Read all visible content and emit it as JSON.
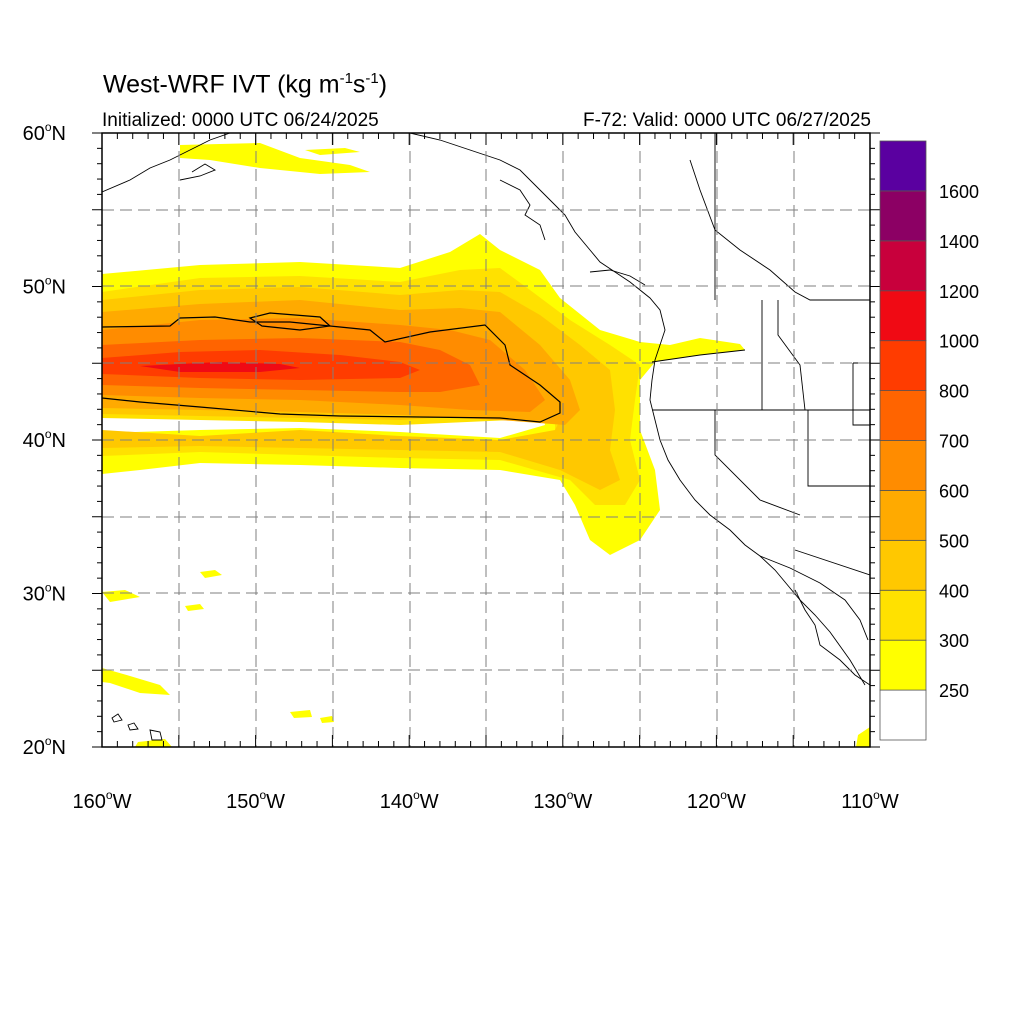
{
  "title": {
    "main": "West-WRF IVT (kg m",
    "sup1": "-1",
    "mid": "s",
    "sup2": "-1",
    "end": ")"
  },
  "init_label": "Initialized: 0000 UTC 06/24/2025",
  "valid_label": "F-72: Valid: 0000 UTC 06/27/2025",
  "map": {
    "lon_range": [
      -160,
      -110
    ],
    "lat_range": [
      20,
      60
    ],
    "lon_ticks": [
      -160,
      -150,
      -140,
      -130,
      -120,
      -110
    ],
    "lat_ticks": [
      60,
      50,
      40,
      30,
      20
    ],
    "lon_tick_labels": [
      "160",
      "150",
      "140",
      "130",
      "120",
      "110"
    ],
    "lat_tick_labels": [
      "60",
      "50",
      "40",
      "30",
      "20"
    ],
    "lon_suffix": "W",
    "lat_suffix": "N",
    "degree_symbol": "o",
    "grid": true
  },
  "colorbar": {
    "levels": [
      "250",
      "300",
      "400",
      "500",
      "600",
      "700",
      "800",
      "1000",
      "1200",
      "1400",
      "1600"
    ],
    "colors": [
      "#ffffff",
      "#ffff00",
      "#ffe100",
      "#ffc800",
      "#ffaa00",
      "#ff8c00",
      "#ff6400",
      "#ff3c00",
      "#f00a14",
      "#c8003c",
      "#8c0064",
      "#5a00a0"
    ]
  }
}
